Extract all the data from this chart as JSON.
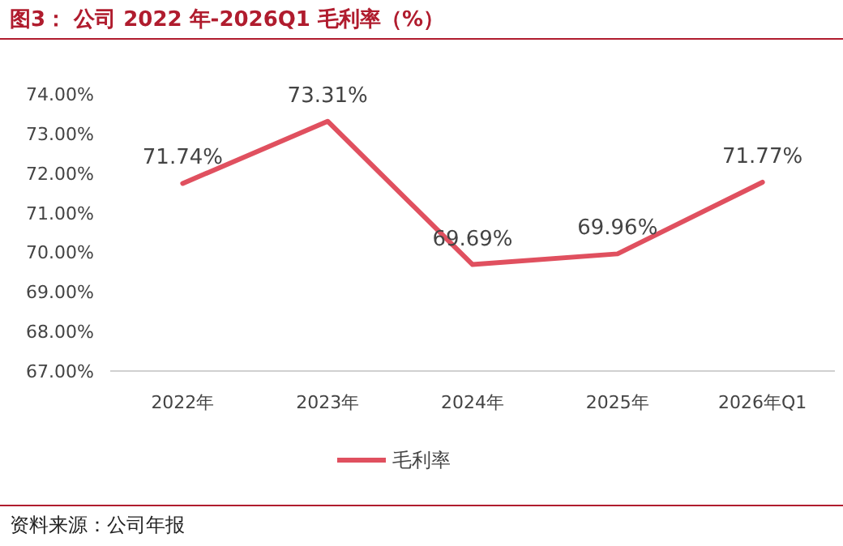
{
  "chart_data": {
    "type": "line",
    "title": "图3：  公司 2022 年-2026Q1 毛利率（%）",
    "categories": [
      "2022年",
      "2023年",
      "2024年",
      "2025年",
      "2026年Q1"
    ],
    "series": [
      {
        "name": "毛利率",
        "color": "#e0505f",
        "values": [
          71.74,
          73.31,
          69.69,
          69.96,
          71.77
        ],
        "value_labels": [
          "71.74%",
          "73.31%",
          "69.69%",
          "69.96%",
          "71.77%"
        ]
      }
    ],
    "ylim": [
      67,
      74
    ],
    "yticks": [
      {
        "value": 67,
        "label": "67.00%"
      },
      {
        "value": 68,
        "label": "68.00%"
      },
      {
        "value": 69,
        "label": "69.00%"
      },
      {
        "value": 70,
        "label": "70.00%"
      },
      {
        "value": 71,
        "label": "71.00%"
      },
      {
        "value": 72,
        "label": "72.00%"
      },
      {
        "value": 73,
        "label": "73.00%"
      },
      {
        "value": 74,
        "label": "74.00%"
      }
    ],
    "legend": "bottom",
    "marker": "none",
    "line_style": "solid",
    "grid": false,
    "annotations": [
      "资料来源：公司年报"
    ]
  }
}
